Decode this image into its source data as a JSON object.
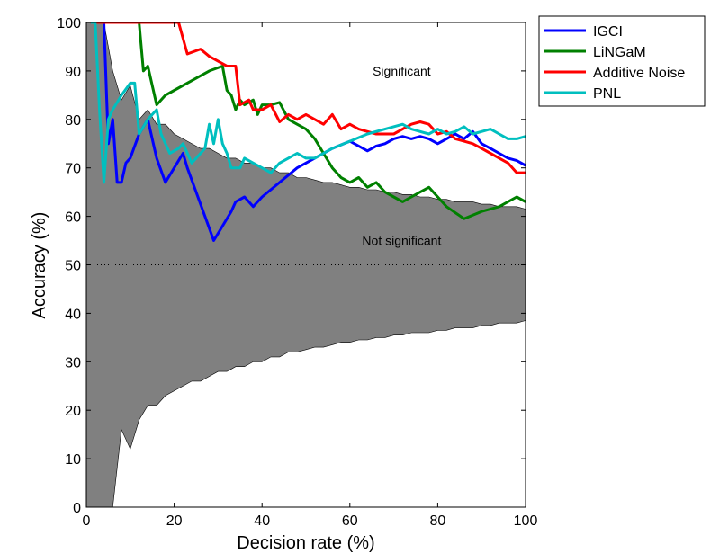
{
  "chart_data": {
    "type": "line",
    "title": "",
    "xlabel": "Decision rate (%)",
    "ylabel": "Accuracy (%)",
    "xlim": [
      0,
      100
    ],
    "ylim": [
      0,
      100
    ],
    "xticks": [
      0,
      20,
      40,
      60,
      80,
      100
    ],
    "yticks": [
      0,
      10,
      20,
      30,
      40,
      50,
      60,
      70,
      80,
      90,
      100
    ],
    "grid": false,
    "legend_position": "top-right outside",
    "annotations": [
      {
        "text": "Significant",
        "x": 80,
        "y": 90
      },
      {
        "text": "Not significant",
        "x": 80,
        "y": 55
      }
    ],
    "reference_line": {
      "y": 50,
      "style": "dotted"
    },
    "significance_band": {
      "color": "#808080",
      "upper": [
        [
          0,
          100
        ],
        [
          4,
          100
        ],
        [
          6,
          90
        ],
        [
          8,
          84
        ],
        [
          10,
          87
        ],
        [
          12,
          80
        ],
        [
          14,
          82
        ],
        [
          16,
          79
        ],
        [
          18,
          79
        ],
        [
          20,
          77
        ],
        [
          22,
          76
        ],
        [
          24,
          75
        ],
        [
          26,
          74
        ],
        [
          28,
          74
        ],
        [
          30,
          73
        ],
        [
          32,
          72
        ],
        [
          34,
          72
        ],
        [
          36,
          71
        ],
        [
          38,
          71
        ],
        [
          40,
          70
        ],
        [
          42,
          70
        ],
        [
          44,
          69
        ],
        [
          46,
          69
        ],
        [
          48,
          68
        ],
        [
          50,
          68
        ],
        [
          52,
          67.5
        ],
        [
          54,
          67
        ],
        [
          56,
          67
        ],
        [
          58,
          66.5
        ],
        [
          60,
          66
        ],
        [
          62,
          66
        ],
        [
          64,
          65.5
        ],
        [
          66,
          65.5
        ],
        [
          68,
          65
        ],
        [
          70,
          65
        ],
        [
          72,
          64.5
        ],
        [
          74,
          64.5
        ],
        [
          76,
          64
        ],
        [
          78,
          64
        ],
        [
          80,
          63.5
        ],
        [
          82,
          63.5
        ],
        [
          84,
          63
        ],
        [
          86,
          63
        ],
        [
          88,
          63
        ],
        [
          90,
          62.5
        ],
        [
          92,
          62.5
        ],
        [
          94,
          62
        ],
        [
          96,
          62
        ],
        [
          98,
          62
        ],
        [
          100,
          61.5
        ]
      ],
      "lower": [
        [
          0,
          0
        ],
        [
          4,
          0
        ],
        [
          6,
          0
        ],
        [
          8,
          16
        ],
        [
          10,
          12
        ],
        [
          12,
          18
        ],
        [
          14,
          21
        ],
        [
          16,
          21
        ],
        [
          18,
          23
        ],
        [
          20,
          24
        ],
        [
          22,
          25
        ],
        [
          24,
          26
        ],
        [
          26,
          26
        ],
        [
          28,
          27
        ],
        [
          30,
          28
        ],
        [
          32,
          28
        ],
        [
          34,
          29
        ],
        [
          36,
          29
        ],
        [
          38,
          30
        ],
        [
          40,
          30
        ],
        [
          42,
          31
        ],
        [
          44,
          31
        ],
        [
          46,
          32
        ],
        [
          48,
          32
        ],
        [
          50,
          32.5
        ],
        [
          52,
          33
        ],
        [
          54,
          33
        ],
        [
          56,
          33.5
        ],
        [
          58,
          34
        ],
        [
          60,
          34
        ],
        [
          62,
          34.5
        ],
        [
          64,
          34.5
        ],
        [
          66,
          35
        ],
        [
          68,
          35
        ],
        [
          70,
          35.5
        ],
        [
          72,
          35.5
        ],
        [
          74,
          36
        ],
        [
          76,
          36
        ],
        [
          78,
          36
        ],
        [
          80,
          36.5
        ],
        [
          82,
          36.5
        ],
        [
          84,
          37
        ],
        [
          86,
          37
        ],
        [
          88,
          37
        ],
        [
          90,
          37.5
        ],
        [
          92,
          37.5
        ],
        [
          94,
          38
        ],
        [
          96,
          38
        ],
        [
          98,
          38
        ],
        [
          100,
          38.5
        ]
      ]
    },
    "series": [
      {
        "name": "IGCI",
        "color": "#0000ff",
        "points": [
          [
            1,
            100
          ],
          [
            3,
            100
          ],
          [
            4,
            100
          ],
          [
            5,
            75
          ],
          [
            6,
            80
          ],
          [
            7,
            67
          ],
          [
            8,
            67
          ],
          [
            9,
            71
          ],
          [
            10,
            72
          ],
          [
            12,
            77
          ],
          [
            14,
            80
          ],
          [
            15,
            76
          ],
          [
            16,
            72
          ],
          [
            18,
            67
          ],
          [
            20,
            70
          ],
          [
            22,
            73
          ],
          [
            23,
            70
          ],
          [
            25,
            65
          ],
          [
            27,
            60
          ],
          [
            29,
            55
          ],
          [
            31,
            58
          ],
          [
            33,
            61
          ],
          [
            34,
            63
          ],
          [
            36,
            64
          ],
          [
            38,
            62
          ],
          [
            40,
            64
          ],
          [
            44,
            67
          ],
          [
            48,
            70
          ],
          [
            52,
            72
          ],
          [
            56,
            74
          ],
          [
            60,
            75.5
          ],
          [
            62,
            74.5
          ],
          [
            64,
            73.5
          ],
          [
            66,
            74.5
          ],
          [
            68,
            75
          ],
          [
            70,
            76
          ],
          [
            72,
            76.5
          ],
          [
            74,
            76
          ],
          [
            76,
            76.5
          ],
          [
            78,
            76
          ],
          [
            80,
            75
          ],
          [
            82,
            76
          ],
          [
            84,
            77
          ],
          [
            86,
            76
          ],
          [
            88,
            77.5
          ],
          [
            90,
            75
          ],
          [
            92,
            74
          ],
          [
            94,
            73
          ],
          [
            96,
            72
          ],
          [
            98,
            71.5
          ],
          [
            100,
            70.5
          ]
        ]
      },
      {
        "name": "LiNGaM",
        "color": "#008000",
        "points": [
          [
            1,
            100
          ],
          [
            12,
            100
          ],
          [
            13,
            90
          ],
          [
            14,
            91
          ],
          [
            16,
            83
          ],
          [
            18,
            85
          ],
          [
            20,
            86
          ],
          [
            24,
            88
          ],
          [
            28,
            90
          ],
          [
            31,
            91
          ],
          [
            32,
            86
          ],
          [
            33,
            85
          ],
          [
            34,
            82
          ],
          [
            35,
            84
          ],
          [
            36,
            83
          ],
          [
            38,
            84
          ],
          [
            39,
            81
          ],
          [
            40,
            83
          ],
          [
            42,
            83
          ],
          [
            44,
            83.5
          ],
          [
            46,
            80
          ],
          [
            48,
            79
          ],
          [
            50,
            78
          ],
          [
            52,
            76
          ],
          [
            54,
            73
          ],
          [
            56,
            70
          ],
          [
            58,
            68
          ],
          [
            60,
            67
          ],
          [
            62,
            68
          ],
          [
            64,
            66
          ],
          [
            66,
            67
          ],
          [
            68,
            65
          ],
          [
            70,
            64
          ],
          [
            72,
            63
          ],
          [
            74,
            64
          ],
          [
            76,
            65
          ],
          [
            78,
            66
          ],
          [
            82,
            62
          ],
          [
            86,
            59.5
          ],
          [
            90,
            61
          ],
          [
            94,
            62
          ],
          [
            98,
            64
          ],
          [
            100,
            63
          ]
        ]
      },
      {
        "name": "Additive Noise",
        "color": "#ff0000",
        "points": [
          [
            1,
            100
          ],
          [
            21,
            100
          ],
          [
            23,
            93.5
          ],
          [
            26,
            94.5
          ],
          [
            28,
            93
          ],
          [
            30,
            92
          ],
          [
            32,
            91
          ],
          [
            34,
            91
          ],
          [
            35,
            83
          ],
          [
            37,
            84
          ],
          [
            38,
            82
          ],
          [
            40,
            82
          ],
          [
            42,
            83
          ],
          [
            44,
            79.5
          ],
          [
            46,
            81
          ],
          [
            48,
            80
          ],
          [
            50,
            81
          ],
          [
            52,
            80
          ],
          [
            54,
            79
          ],
          [
            56,
            81
          ],
          [
            58,
            78
          ],
          [
            60,
            79
          ],
          [
            62,
            78
          ],
          [
            64,
            77.5
          ],
          [
            66,
            77
          ],
          [
            68,
            77
          ],
          [
            70,
            77
          ],
          [
            72,
            78
          ],
          [
            74,
            79
          ],
          [
            76,
            79.5
          ],
          [
            78,
            79
          ],
          [
            80,
            77
          ],
          [
            82,
            77.5
          ],
          [
            84,
            76
          ],
          [
            86,
            75.5
          ],
          [
            88,
            75
          ],
          [
            90,
            74
          ],
          [
            92,
            73
          ],
          [
            94,
            72
          ],
          [
            96,
            71
          ],
          [
            98,
            69
          ],
          [
            100,
            69
          ]
        ]
      },
      {
        "name": "PNL",
        "color": "#00bfbf",
        "points": [
          [
            1,
            100
          ],
          [
            2,
            100
          ],
          [
            3,
            82
          ],
          [
            4,
            67
          ],
          [
            5,
            80
          ],
          [
            6,
            82
          ],
          [
            8,
            85
          ],
          [
            10,
            87.5
          ],
          [
            11,
            87.5
          ],
          [
            12,
            77
          ],
          [
            14,
            80
          ],
          [
            16,
            82
          ],
          [
            17,
            77
          ],
          [
            19,
            73
          ],
          [
            21,
            74
          ],
          [
            22,
            75
          ],
          [
            24,
            71
          ],
          [
            26,
            73
          ],
          [
            27,
            74
          ],
          [
            28,
            79
          ],
          [
            29,
            75
          ],
          [
            30,
            80
          ],
          [
            31,
            75
          ],
          [
            32,
            73
          ],
          [
            33,
            70
          ],
          [
            35,
            70
          ],
          [
            36,
            72
          ],
          [
            38,
            71
          ],
          [
            40,
            70
          ],
          [
            42,
            69
          ],
          [
            44,
            71
          ],
          [
            46,
            72
          ],
          [
            48,
            73
          ],
          [
            50,
            72
          ],
          [
            52,
            72
          ],
          [
            56,
            74
          ],
          [
            60,
            75.5
          ],
          [
            64,
            77
          ],
          [
            68,
            78
          ],
          [
            72,
            79
          ],
          [
            74,
            78
          ],
          [
            76,
            77.5
          ],
          [
            78,
            77
          ],
          [
            80,
            78
          ],
          [
            82,
            77
          ],
          [
            84,
            77.5
          ],
          [
            86,
            78.5
          ],
          [
            88,
            77
          ],
          [
            90,
            77.5
          ],
          [
            92,
            78
          ],
          [
            94,
            77
          ],
          [
            96,
            76
          ],
          [
            98,
            76
          ],
          [
            100,
            76.5
          ]
        ]
      }
    ]
  }
}
